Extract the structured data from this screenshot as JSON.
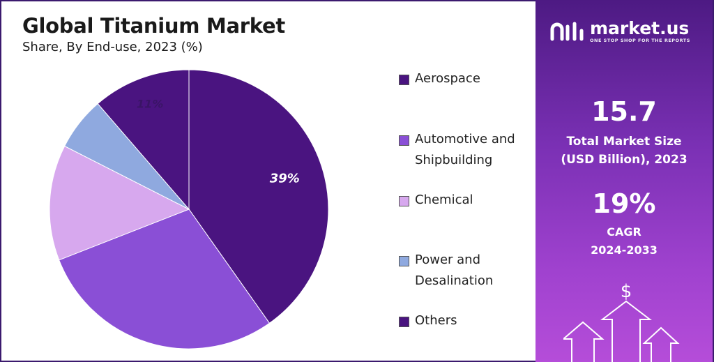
{
  "title": "Global Titanium Market",
  "subtitle": "Share, By End-use, 2023 (%)",
  "chart_data": {
    "type": "pie",
    "title": "Global Titanium Market",
    "subtitle": "Share, By End-use, 2023 (%)",
    "slices": [
      {
        "label": "Aerospace",
        "value": 39,
        "color": "#4a1480",
        "data_label": "39%"
      },
      {
        "label": "Automotive and Shipbuilding",
        "value": 28,
        "color": "#8a4fd6",
        "data_label": ""
      },
      {
        "label": "Chemical",
        "value": 13,
        "color": "#d7a8ee",
        "data_label": ""
      },
      {
        "label": "Power and Desalination",
        "value": 6,
        "color": "#8fa9df",
        "data_label": ""
      },
      {
        "label": "Others",
        "value": 11,
        "color": "#4a1480",
        "data_label": "11%"
      }
    ],
    "legend": [
      "Aerospace",
      "Automotive and Shipbuilding",
      "Chemical",
      "Power and Desalination",
      "Others"
    ],
    "legend_placement": "right"
  },
  "brand": {
    "name": "market.us",
    "tagline": "ONE STOP SHOP FOR THE REPORTS"
  },
  "stats": {
    "market_size_value": "15.7",
    "market_size_label_1": "Total Market Size",
    "market_size_label_2": "(USD Billion), 2023",
    "cagr_value": "19%",
    "cagr_label_1": "CAGR",
    "cagr_label_2": "2024-2033"
  },
  "icons": {
    "dollar": "$"
  },
  "colors": {
    "panel_top": "#4d1a83",
    "panel_bottom": "#b54dd9"
  }
}
